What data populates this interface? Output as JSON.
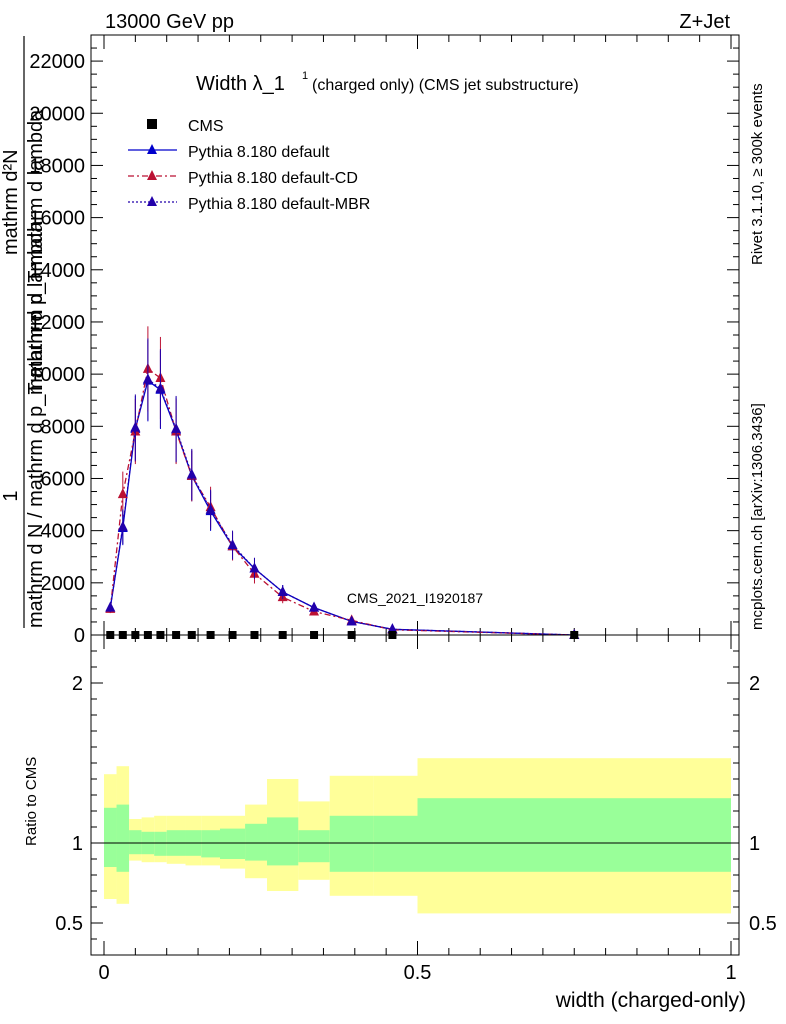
{
  "header": {
    "energy": "13000 GeV pp",
    "process": "Z+Jet"
  },
  "side_labels": {
    "rivet": "Rivet 3.1.10, ≥ 300k events",
    "mcplots": "mcplots.cern.ch [arXiv:1306.3436]"
  },
  "chart_data": [
    {
      "type": "line",
      "title": "Width λ_1",
      "title_sup": "1",
      "subtitle": "(charged only) (CMS jet substructure)",
      "watermark": "CMS_2021_I1920187",
      "xlabel": "width (charged-only)",
      "ylabel": {
        "numerator": "1",
        "denominator": "mathrm d N / mathrm d p_T mathrm d lambda",
        "right_top": "mathrm d²N",
        "right_bottom": "mathrm d p_T mathrm d lambda"
      },
      "xlim": [
        0,
        1
      ],
      "ylim": [
        0,
        23000
      ],
      "yticks": [
        {
          "v": 0,
          "label": "0"
        },
        {
          "v": 2000,
          "label": "2000"
        },
        {
          "v": 4000,
          "label": "4000"
        },
        {
          "v": 6000,
          "label": "6000"
        },
        {
          "v": 8000,
          "label": "8000"
        },
        {
          "v": 10000,
          "label": "10000"
        },
        {
          "v": 12000,
          "label": "12000"
        },
        {
          "v": 14000,
          "label": "14000"
        },
        {
          "v": 16000,
          "label": "16000"
        },
        {
          "v": 18000,
          "label": "18000"
        },
        {
          "v": 20000,
          "label": "20000"
        },
        {
          "v": 22000,
          "label": "22000"
        }
      ],
      "xticks": [
        {
          "v": 0,
          "label": "0"
        },
        {
          "v": 0.5,
          "label": "0.5"
        },
        {
          "v": 1,
          "label": "1"
        }
      ],
      "legend": [
        "CMS",
        "Pythia 8.180 default",
        "Pythia 8.180 default-CD",
        "Pythia 8.180 default-MBR"
      ],
      "cms": {
        "name": "CMS",
        "x": [
          0.01,
          0.03,
          0.05,
          0.07,
          0.09,
          0.115,
          0.14,
          0.17,
          0.205,
          0.24,
          0.285,
          0.335,
          0.395,
          0.46,
          0.75
        ],
        "y": [
          0,
          0,
          0,
          0,
          0,
          0,
          0,
          0,
          0,
          0,
          0,
          0,
          0,
          0,
          0
        ]
      },
      "series": [
        {
          "name": "Pythia 8.180 default",
          "color": "#0000cc",
          "dash": "",
          "x": [
            0.01,
            0.03,
            0.05,
            0.07,
            0.09,
            0.115,
            0.14,
            0.17,
            0.205,
            0.24,
            0.285,
            0.335,
            0.395,
            0.46,
            0.75
          ],
          "y": [
            1050,
            4100,
            7900,
            9750,
            9400,
            7850,
            6100,
            4750,
            3400,
            2550,
            1650,
            1050,
            520,
            220,
            0
          ]
        },
        {
          "name": "Pythia 8.180 default-CD",
          "color": "#bb1133",
          "dash": "6,3,2,3",
          "x": [
            0.01,
            0.03,
            0.05,
            0.07,
            0.09,
            0.115,
            0.14,
            0.17,
            0.205,
            0.24,
            0.285,
            0.335,
            0.395,
            0.46,
            0.75
          ],
          "y": [
            1000,
            5400,
            7800,
            10200,
            9850,
            7800,
            6100,
            4900,
            3400,
            2350,
            1450,
            900,
            560,
            200,
            0
          ]
        },
        {
          "name": "Pythia 8.180 default-MBR",
          "color": "#2200aa",
          "dash": "2,2",
          "x": [
            0.01,
            0.03,
            0.05,
            0.07,
            0.09,
            0.115,
            0.14,
            0.17,
            0.205,
            0.24,
            0.285,
            0.335,
            0.395,
            0.46,
            0.75
          ],
          "y": [
            1050,
            4150,
            7950,
            9800,
            9450,
            7900,
            6150,
            4800,
            3450,
            2550,
            1650,
            1050,
            520,
            220,
            0
          ]
        }
      ]
    },
    {
      "type": "area",
      "ylabel": "Ratio to CMS",
      "ylim": [
        0.3,
        2.3
      ],
      "yticks": [
        {
          "v": 0.5,
          "label": "0.5"
        },
        {
          "v": 1,
          "label": "1"
        },
        {
          "v": 2,
          "label": "2"
        }
      ],
      "bins": [
        {
          "x0": 0.0,
          "x1": 0.02,
          "y_lo": 0.65,
          "y_hi": 1.43,
          "g_lo": 0.85,
          "g_hi": 1.22
        },
        {
          "x0": 0.02,
          "x1": 0.04,
          "y_lo": 0.62,
          "y_hi": 1.48,
          "g_lo": 0.82,
          "g_hi": 1.24
        },
        {
          "x0": 0.04,
          "x1": 0.06,
          "y_lo": 0.89,
          "y_hi": 1.15,
          "g_lo": 0.93,
          "g_hi": 1.08
        },
        {
          "x0": 0.06,
          "x1": 0.08,
          "y_lo": 0.88,
          "y_hi": 1.16,
          "g_lo": 0.93,
          "g_hi": 1.07
        },
        {
          "x0": 0.08,
          "x1": 0.1,
          "y_lo": 0.88,
          "y_hi": 1.17,
          "g_lo": 0.92,
          "g_hi": 1.07
        },
        {
          "x0": 0.1,
          "x1": 0.13,
          "y_lo": 0.87,
          "y_hi": 1.17,
          "g_lo": 0.92,
          "g_hi": 1.08
        },
        {
          "x0": 0.13,
          "x1": 0.155,
          "y_lo": 0.86,
          "y_hi": 1.17,
          "g_lo": 0.92,
          "g_hi": 1.08
        },
        {
          "x0": 0.155,
          "x1": 0.185,
          "y_lo": 0.86,
          "y_hi": 1.17,
          "g_lo": 0.91,
          "g_hi": 1.08
        },
        {
          "x0": 0.185,
          "x1": 0.225,
          "y_lo": 0.84,
          "y_hi": 1.17,
          "g_lo": 0.9,
          "g_hi": 1.09
        },
        {
          "x0": 0.225,
          "x1": 0.26,
          "y_lo": 0.78,
          "y_hi": 1.24,
          "g_lo": 0.89,
          "g_hi": 1.12
        },
        {
          "x0": 0.26,
          "x1": 0.31,
          "y_lo": 0.7,
          "y_hi": 1.4,
          "g_lo": 0.86,
          "g_hi": 1.16
        },
        {
          "x0": 0.31,
          "x1": 0.36,
          "y_lo": 0.77,
          "y_hi": 1.26,
          "g_lo": 0.88,
          "g_hi": 1.08
        },
        {
          "x0": 0.36,
          "x1": 0.43,
          "y_lo": 0.67,
          "y_hi": 1.42,
          "g_lo": 0.82,
          "g_hi": 1.17
        },
        {
          "x0": 0.43,
          "x1": 0.5,
          "y_lo": 0.67,
          "y_hi": 1.42,
          "g_lo": 0.82,
          "g_hi": 1.17
        },
        {
          "x0": 0.5,
          "x1": 1.0,
          "y_lo": 0.56,
          "y_hi": 1.53,
          "g_lo": 0.82,
          "g_hi": 1.28
        }
      ],
      "colors": {
        "yellow": "#ffff99",
        "green": "#99ff99",
        "line": "#000000"
      }
    }
  ]
}
